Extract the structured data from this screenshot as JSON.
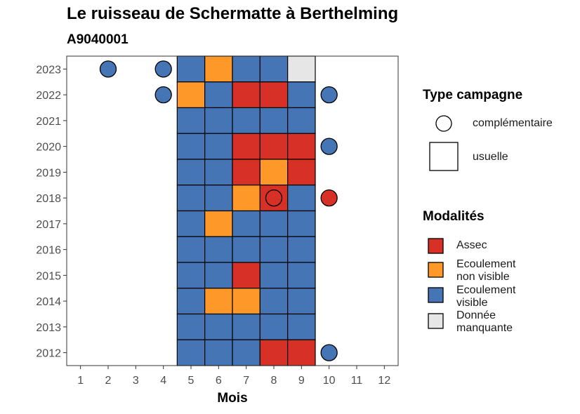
{
  "title": "Le ruisseau de Schermatte à Berthelming",
  "subtitle": "A9040001",
  "chart_data": {
    "type": "heatmap",
    "xlabel": "Mois",
    "ylabel": "",
    "x_ticks": [
      "1",
      "2",
      "3",
      "4",
      "5",
      "6",
      "7",
      "8",
      "9",
      "10",
      "11",
      "12"
    ],
    "y_ticks": [
      "2012",
      "2013",
      "2014",
      "2015",
      "2016",
      "2017",
      "2018",
      "2019",
      "2020",
      "2021",
      "2022",
      "2023"
    ],
    "grid": false,
    "legend_position": "right",
    "colors": {
      "Assec": "#d73027",
      "Ecoulement non visible": "#fe9929",
      "Ecoulement visible": "#4575b4",
      "Donnée manquante": "#e6e6e6"
    },
    "usuelle": [
      {
        "year": 2023,
        "cells": [
          [
            "5",
            "Ecoulement visible"
          ],
          [
            "6",
            "Ecoulement non visible"
          ],
          [
            "7",
            "Ecoulement visible"
          ],
          [
            "8",
            "Ecoulement visible"
          ],
          [
            "9",
            "Donnée manquante"
          ]
        ]
      },
      {
        "year": 2022,
        "cells": [
          [
            "5",
            "Ecoulement non visible"
          ],
          [
            "6",
            "Ecoulement visible"
          ],
          [
            "7",
            "Assec"
          ],
          [
            "8",
            "Assec"
          ],
          [
            "9",
            "Ecoulement visible"
          ]
        ]
      },
      {
        "year": 2021,
        "cells": [
          [
            "5",
            "Ecoulement visible"
          ],
          [
            "6",
            "Ecoulement visible"
          ],
          [
            "7",
            "Ecoulement visible"
          ],
          [
            "8",
            "Ecoulement visible"
          ],
          [
            "9",
            "Ecoulement visible"
          ]
        ]
      },
      {
        "year": 2020,
        "cells": [
          [
            "5",
            "Ecoulement visible"
          ],
          [
            "6",
            "Ecoulement visible"
          ],
          [
            "7",
            "Assec"
          ],
          [
            "8",
            "Assec"
          ],
          [
            "9",
            "Assec"
          ]
        ]
      },
      {
        "year": 2019,
        "cells": [
          [
            "5",
            "Ecoulement visible"
          ],
          [
            "6",
            "Ecoulement visible"
          ],
          [
            "7",
            "Assec"
          ],
          [
            "8",
            "Ecoulement non visible"
          ],
          [
            "9",
            "Assec"
          ]
        ]
      },
      {
        "year": 2018,
        "cells": [
          [
            "5",
            "Ecoulement visible"
          ],
          [
            "6",
            "Ecoulement visible"
          ],
          [
            "7",
            "Ecoulement non visible"
          ],
          [
            "8",
            "Assec"
          ],
          [
            "9",
            "Ecoulement visible"
          ]
        ]
      },
      {
        "year": 2017,
        "cells": [
          [
            "5",
            "Ecoulement visible"
          ],
          [
            "6",
            "Ecoulement non visible"
          ],
          [
            "7",
            "Ecoulement visible"
          ],
          [
            "8",
            "Ecoulement visible"
          ],
          [
            "9",
            "Ecoulement visible"
          ]
        ]
      },
      {
        "year": 2016,
        "cells": [
          [
            "5",
            "Ecoulement visible"
          ],
          [
            "6",
            "Ecoulement visible"
          ],
          [
            "7",
            "Ecoulement visible"
          ],
          [
            "8",
            "Ecoulement visible"
          ],
          [
            "9",
            "Ecoulement visible"
          ]
        ]
      },
      {
        "year": 2015,
        "cells": [
          [
            "5",
            "Ecoulement visible"
          ],
          [
            "6",
            "Ecoulement visible"
          ],
          [
            "7",
            "Assec"
          ],
          [
            "8",
            "Ecoulement visible"
          ],
          [
            "9",
            "Ecoulement visible"
          ]
        ]
      },
      {
        "year": 2014,
        "cells": [
          [
            "5",
            "Ecoulement visible"
          ],
          [
            "6",
            "Ecoulement non visible"
          ],
          [
            "7",
            "Ecoulement non visible"
          ],
          [
            "8",
            "Ecoulement visible"
          ],
          [
            "9",
            "Ecoulement visible"
          ]
        ]
      },
      {
        "year": 2013,
        "cells": [
          [
            "5",
            "Ecoulement visible"
          ],
          [
            "6",
            "Ecoulement visible"
          ],
          [
            "7",
            "Ecoulement visible"
          ],
          [
            "8",
            "Ecoulement visible"
          ],
          [
            "9",
            "Ecoulement visible"
          ]
        ]
      },
      {
        "year": 2012,
        "cells": [
          [
            "5",
            "Ecoulement visible"
          ],
          [
            "6",
            "Ecoulement visible"
          ],
          [
            "7",
            "Ecoulement visible"
          ],
          [
            "8",
            "Assec"
          ],
          [
            "9",
            "Assec"
          ]
        ]
      }
    ],
    "complementaire": [
      {
        "year": 2023,
        "month": "2",
        "modalite": "Ecoulement visible"
      },
      {
        "year": 2023,
        "month": "4",
        "modalite": "Ecoulement visible"
      },
      {
        "year": 2022,
        "month": "4",
        "modalite": "Ecoulement visible"
      },
      {
        "year": 2022,
        "month": "10",
        "modalite": "Ecoulement visible"
      },
      {
        "year": 2020,
        "month": "10",
        "modalite": "Ecoulement visible"
      },
      {
        "year": 2018,
        "month": "8",
        "modalite": "Assec"
      },
      {
        "year": 2018,
        "month": "10",
        "modalite": "Assec"
      },
      {
        "year": 2012,
        "month": "10",
        "modalite": "Ecoulement visible"
      }
    ]
  },
  "legend": {
    "type_title": "Type campagne",
    "type_items": [
      "complémentaire",
      "usuelle"
    ],
    "mod_title": "Modalités",
    "mod_items": [
      {
        "label_lines": [
          "Assec"
        ],
        "color": "#d73027"
      },
      {
        "label_lines": [
          "Ecoulement",
          "non visible"
        ],
        "color": "#fe9929"
      },
      {
        "label_lines": [
          "Ecoulement",
          "visible"
        ],
        "color": "#4575b4"
      },
      {
        "label_lines": [
          "Donnée",
          "manquante"
        ],
        "color": "#e6e6e6"
      }
    ]
  }
}
